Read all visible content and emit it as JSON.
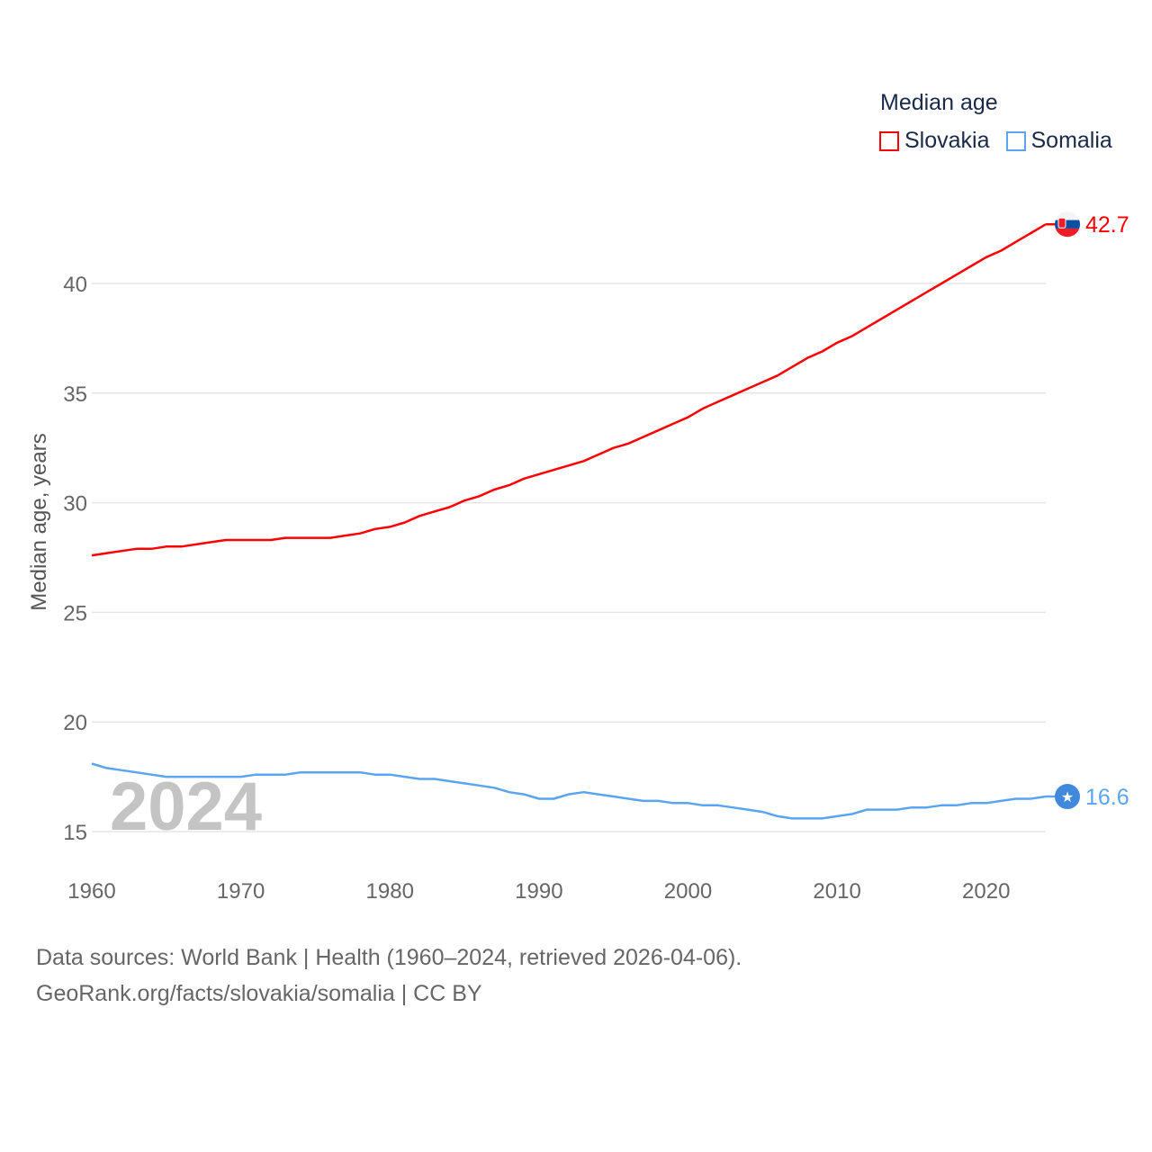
{
  "chart_data": {
    "type": "line",
    "title": "Median age",
    "xlabel": "",
    "ylabel": "Median age, years",
    "xlim": [
      1960,
      2024
    ],
    "ylim": [
      13.5,
      44
    ],
    "yticks": [
      15,
      20,
      25,
      30,
      35,
      40
    ],
    "xticks": [
      1960,
      1970,
      1980,
      1990,
      2000,
      2010,
      2020
    ],
    "grid": true,
    "legend_position": "top-right",
    "year_label": "2024",
    "x": [
      1960,
      1961,
      1962,
      1963,
      1964,
      1965,
      1966,
      1967,
      1968,
      1969,
      1970,
      1971,
      1972,
      1973,
      1974,
      1975,
      1976,
      1977,
      1978,
      1979,
      1980,
      1981,
      1982,
      1983,
      1984,
      1985,
      1986,
      1987,
      1988,
      1989,
      1990,
      1991,
      1992,
      1993,
      1994,
      1995,
      1996,
      1997,
      1998,
      1999,
      2000,
      2001,
      2002,
      2003,
      2004,
      2005,
      2006,
      2007,
      2008,
      2009,
      2010,
      2011,
      2012,
      2013,
      2014,
      2015,
      2016,
      2017,
      2018,
      2019,
      2020,
      2021,
      2022,
      2023,
      2024
    ],
    "series": [
      {
        "name": "Slovakia",
        "color": "#ff0000",
        "end_label": "42.7",
        "values": [
          27.6,
          27.7,
          27.8,
          27.9,
          27.9,
          28.0,
          28.0,
          28.1,
          28.2,
          28.3,
          28.3,
          28.3,
          28.3,
          28.4,
          28.4,
          28.4,
          28.4,
          28.5,
          28.6,
          28.8,
          28.9,
          29.1,
          29.4,
          29.6,
          29.8,
          30.1,
          30.3,
          30.6,
          30.8,
          31.1,
          31.3,
          31.5,
          31.7,
          31.9,
          32.2,
          32.5,
          32.7,
          33.0,
          33.3,
          33.6,
          33.9,
          34.3,
          34.6,
          34.9,
          35.2,
          35.5,
          35.8,
          36.2,
          36.6,
          36.9,
          37.3,
          37.6,
          38.0,
          38.4,
          38.8,
          39.2,
          39.6,
          40.0,
          40.4,
          40.8,
          41.2,
          41.5,
          41.9,
          42.3,
          42.7
        ]
      },
      {
        "name": "Somalia",
        "color": "#5ba4f0",
        "end_label": "16.6",
        "values": [
          18.1,
          17.9,
          17.8,
          17.7,
          17.6,
          17.5,
          17.5,
          17.5,
          17.5,
          17.5,
          17.5,
          17.6,
          17.6,
          17.6,
          17.7,
          17.7,
          17.7,
          17.7,
          17.7,
          17.6,
          17.6,
          17.5,
          17.4,
          17.4,
          17.3,
          17.2,
          17.1,
          17.0,
          16.8,
          16.7,
          16.5,
          16.5,
          16.7,
          16.8,
          16.7,
          16.6,
          16.5,
          16.4,
          16.4,
          16.3,
          16.3,
          16.2,
          16.2,
          16.1,
          16.0,
          15.9,
          15.7,
          15.6,
          15.6,
          15.6,
          15.7,
          15.8,
          16.0,
          16.0,
          16.0,
          16.1,
          16.1,
          16.2,
          16.2,
          16.3,
          16.3,
          16.4,
          16.5,
          16.5,
          16.6
        ]
      }
    ]
  },
  "footer": {
    "line1": "Data sources: World Bank | Health (1960–2024, retrieved 2026-04-06).",
    "line2": "GeoRank.org/facts/slovakia/somalia | CC BY"
  }
}
